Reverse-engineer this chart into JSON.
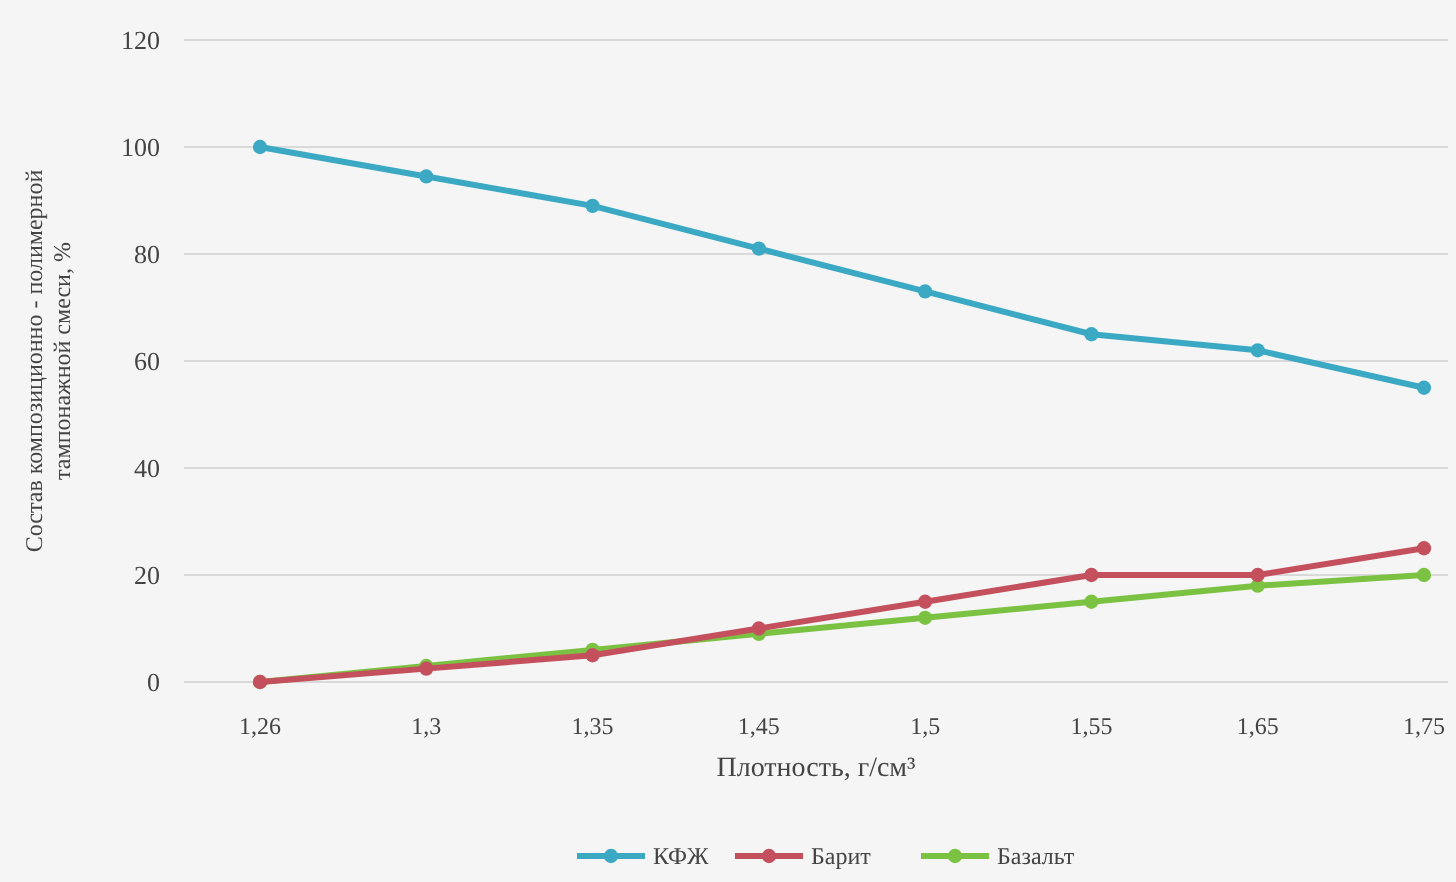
{
  "chart_data": {
    "type": "line",
    "ylabel": "Состав композиционно - полимерной тампонажной смеси, %",
    "xlabel": "Плотность, г/см³",
    "categories": [
      "1,26",
      "1,3",
      "1,35",
      "1,45",
      "1,5",
      "1,55",
      "1,65",
      "1,75"
    ],
    "series": [
      {
        "name": "КФЖ",
        "color": "#3ba9c4",
        "values": [
          100,
          94.5,
          89,
          81,
          73,
          65,
          62,
          55
        ]
      },
      {
        "name": "Барит",
        "color": "#c4505e",
        "values": [
          0,
          2.5,
          5,
          10,
          15,
          20,
          20,
          25
        ]
      },
      {
        "name": "Базальт",
        "color": "#7cc242",
        "values": [
          0,
          3,
          6,
          9,
          12,
          15,
          18,
          20
        ]
      }
    ],
    "ylim": [
      0,
      120
    ],
    "yticks": [
      0,
      20,
      40,
      60,
      80,
      100,
      120
    ],
    "grid": "y",
    "legend": "bottom",
    "marker": "circle",
    "line_style": "solid"
  }
}
